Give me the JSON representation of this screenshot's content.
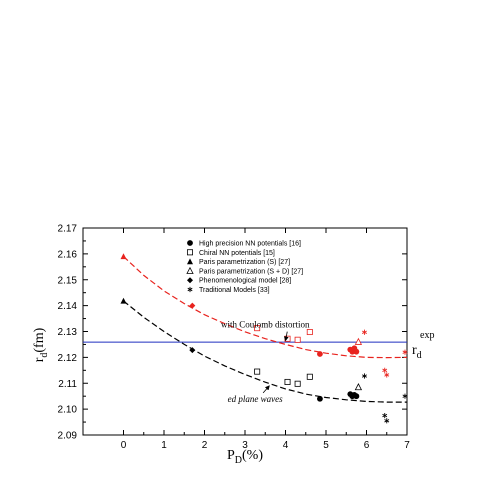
{
  "chart_data": {
    "type": "scatter",
    "title": "",
    "xlabel_main": "P",
    "xlabel_sub": "D",
    "xlabel_unit": "(%)",
    "ylabel_main": "r",
    "ylabel_sub": "d",
    "ylabel_unit": "(fm)",
    "xlim": [
      -1,
      7
    ],
    "ylim": [
      2.09,
      2.17
    ],
    "xticks": [
      0,
      1,
      2,
      3,
      4,
      5,
      6,
      7
    ],
    "yticks": [
      2.09,
      2.1,
      2.11,
      2.12,
      2.13,
      2.14,
      2.15,
      2.16,
      2.17
    ],
    "grid": false,
    "legend_position": "top-center",
    "colors": {
      "black": "#000000",
      "red": "#e8231e",
      "reference": "#1f2fbf"
    },
    "legend": [
      {
        "marker": "circle-filled",
        "label": "High precision NN potentials [16]"
      },
      {
        "marker": "square-open",
        "label": "Chiral NN potentials [15]"
      },
      {
        "marker": "triangle-filled",
        "label": "Paris parametrization (S) [27]"
      },
      {
        "marker": "triangle-open",
        "label": "Paris parametrization (S + D) [27]"
      },
      {
        "marker": "diamond-filled",
        "label": "Phenomenological model [28]"
      },
      {
        "marker": "star",
        "label": "Traditional Models [33]"
      }
    ],
    "reference_line": {
      "y": 2.1259,
      "label_main": "r",
      "label_sub": "d",
      "label_sup": "exp"
    },
    "annotations": [
      {
        "text": "with Coulomb distortion",
        "x": 3.5,
        "y": 2.1315,
        "style": "normal",
        "arrow_to": [
          4.0,
          2.1265
        ]
      },
      {
        "text": "ed plane waves",
        "x": 3.25,
        "y": 2.1028,
        "style": "italic",
        "arrow_to": [
          3.6,
          2.109
        ]
      }
    ],
    "series": [
      {
        "group": "plane-wave",
        "color": "black",
        "fit_curve": [
          [
            0,
            2.1418
          ],
          [
            0.5,
            2.1355
          ],
          [
            1.0,
            2.13
          ],
          [
            1.5,
            2.125
          ],
          [
            2.0,
            2.1205
          ],
          [
            2.5,
            2.1167
          ],
          [
            3.0,
            2.1134
          ],
          [
            3.5,
            2.1104
          ],
          [
            4.0,
            2.1078
          ],
          [
            4.5,
            2.1058
          ],
          [
            5.0,
            2.1045
          ],
          [
            5.5,
            2.1036
          ],
          [
            6.0,
            2.103
          ],
          [
            6.5,
            2.1027
          ],
          [
            7.0,
            2.1027
          ]
        ],
        "points": [
          {
            "marker": "triangle-filled",
            "x": 0.0,
            "y": 2.1418
          },
          {
            "marker": "diamond-filled",
            "x": 1.7,
            "y": 2.1228
          },
          {
            "marker": "square-open",
            "x": 3.3,
            "y": 2.1145
          },
          {
            "marker": "square-open",
            "x": 4.05,
            "y": 2.1105
          },
          {
            "marker": "square-open",
            "x": 4.3,
            "y": 2.1098
          },
          {
            "marker": "square-open",
            "x": 4.6,
            "y": 2.1125
          },
          {
            "marker": "circle-filled",
            "x": 4.85,
            "y": 2.104
          },
          {
            "marker": "circle-filled",
            "x": 5.6,
            "y": 2.1058
          },
          {
            "marker": "circle-filled",
            "x": 5.65,
            "y": 2.105
          },
          {
            "marker": "circle-filled",
            "x": 5.7,
            "y": 2.1055
          },
          {
            "marker": "circle-filled",
            "x": 5.75,
            "y": 2.105
          },
          {
            "marker": "triangle-open",
            "x": 5.8,
            "y": 2.1085
          },
          {
            "marker": "star",
            "x": 5.95,
            "y": 2.1128
          },
          {
            "marker": "star",
            "x": 6.45,
            "y": 2.0975
          },
          {
            "marker": "star",
            "x": 6.5,
            "y": 2.0955
          },
          {
            "marker": "star",
            "x": 6.95,
            "y": 2.105
          }
        ]
      },
      {
        "group": "coulomb",
        "color": "red",
        "fit_curve": [
          [
            0,
            2.159
          ],
          [
            0.5,
            2.1517
          ],
          [
            1.0,
            2.1457
          ],
          [
            1.5,
            2.1408
          ],
          [
            2.0,
            2.1365
          ],
          [
            2.5,
            2.133
          ],
          [
            3.0,
            2.1299
          ],
          [
            3.5,
            2.1272
          ],
          [
            4.0,
            2.125
          ],
          [
            4.5,
            2.123
          ],
          [
            5.0,
            2.1216
          ],
          [
            5.5,
            2.1206
          ],
          [
            6.0,
            2.12
          ],
          [
            6.5,
            2.1199
          ],
          [
            7.0,
            2.12
          ]
        ],
        "points": [
          {
            "marker": "triangle-filled",
            "x": 0.0,
            "y": 2.159
          },
          {
            "marker": "diamond-filled",
            "x": 1.7,
            "y": 2.14
          },
          {
            "marker": "square-open",
            "x": 3.3,
            "y": 2.1313
          },
          {
            "marker": "square-open",
            "x": 4.05,
            "y": 2.1272
          },
          {
            "marker": "square-open",
            "x": 4.3,
            "y": 2.1268
          },
          {
            "marker": "square-open",
            "x": 4.6,
            "y": 2.1298
          },
          {
            "marker": "circle-filled",
            "x": 4.85,
            "y": 2.1213
          },
          {
            "marker": "circle-filled",
            "x": 5.6,
            "y": 2.123
          },
          {
            "marker": "circle-filled",
            "x": 5.65,
            "y": 2.1222
          },
          {
            "marker": "circle-filled",
            "x": 5.7,
            "y": 2.1235
          },
          {
            "marker": "circle-filled",
            "x": 5.75,
            "y": 2.1222
          },
          {
            "marker": "triangle-open",
            "x": 5.8,
            "y": 2.126
          },
          {
            "marker": "star",
            "x": 5.95,
            "y": 2.1297
          },
          {
            "marker": "star",
            "x": 6.45,
            "y": 2.115
          },
          {
            "marker": "star",
            "x": 6.5,
            "y": 2.1132
          },
          {
            "marker": "star",
            "x": 6.95,
            "y": 2.122
          }
        ]
      }
    ]
  }
}
